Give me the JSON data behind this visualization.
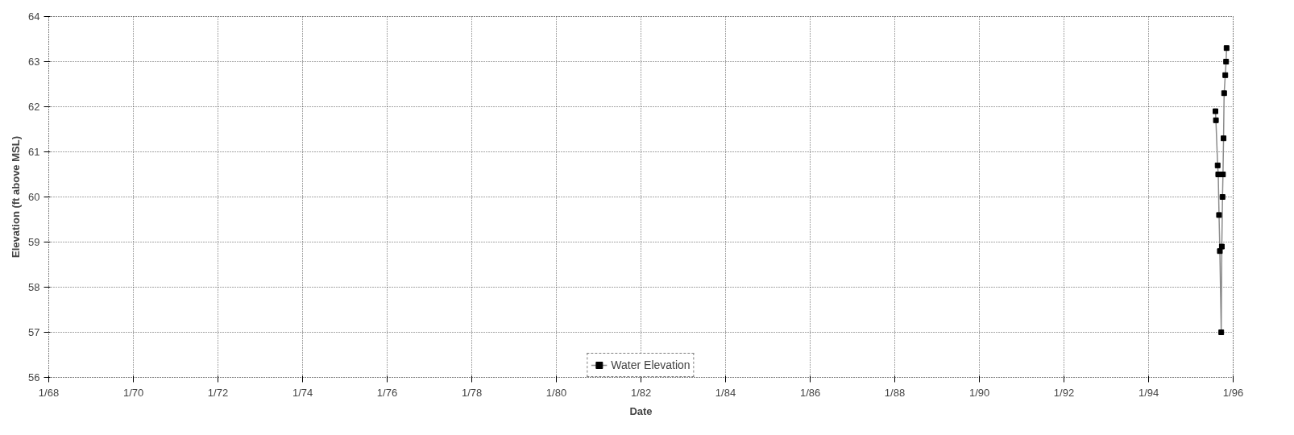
{
  "chart_data": {
    "type": "line",
    "xlabel": "Date",
    "ylabel": "Elevation (ft above MSL)",
    "x": [
      "1995-08-01",
      "1995-08-05",
      "1995-08-20",
      "1995-08-25",
      "1995-09-01",
      "1995-09-08",
      "1995-09-20",
      "1995-09-25",
      "1995-10-01",
      "1995-10-05",
      "1995-10-10",
      "1995-10-15",
      "1995-10-25",
      "1995-11-01",
      "1995-11-05"
    ],
    "series": [
      {
        "name": "Water Elevation",
        "color": "#8c8c8c",
        "values": [
          61.9,
          61.7,
          60.7,
          60.5,
          59.6,
          58.8,
          57.0,
          58.9,
          60.0,
          60.5,
          61.3,
          62.3,
          62.7,
          63.0,
          63.3
        ]
      }
    ],
    "xlim": [
      "1968-01",
      "1996-01"
    ],
    "xticks": [
      {
        "value": "1968-01",
        "label": "1/68"
      },
      {
        "value": "1970-01",
        "label": "1/70"
      },
      {
        "value": "1972-01",
        "label": "1/72"
      },
      {
        "value": "1974-01",
        "label": "1/74"
      },
      {
        "value": "1976-01",
        "label": "1/76"
      },
      {
        "value": "1978-01",
        "label": "1/78"
      },
      {
        "value": "1980-01",
        "label": "1/80"
      },
      {
        "value": "1982-01",
        "label": "1/82"
      },
      {
        "value": "1984-01",
        "label": "1/84"
      },
      {
        "value": "1986-01",
        "label": "1/86"
      },
      {
        "value": "1988-01",
        "label": "1/88"
      },
      {
        "value": "1990-01",
        "label": "1/90"
      },
      {
        "value": "1992-01",
        "label": "1/92"
      },
      {
        "value": "1994-01",
        "label": "1/94"
      },
      {
        "value": "1996-01",
        "label": "1/96"
      }
    ],
    "ylim": [
      56,
      64
    ],
    "yticks": [
      56,
      57,
      58,
      59,
      60,
      61,
      62,
      63,
      64
    ],
    "grid": true,
    "legend": "bottom",
    "marker": "square",
    "line_style": "solid"
  }
}
